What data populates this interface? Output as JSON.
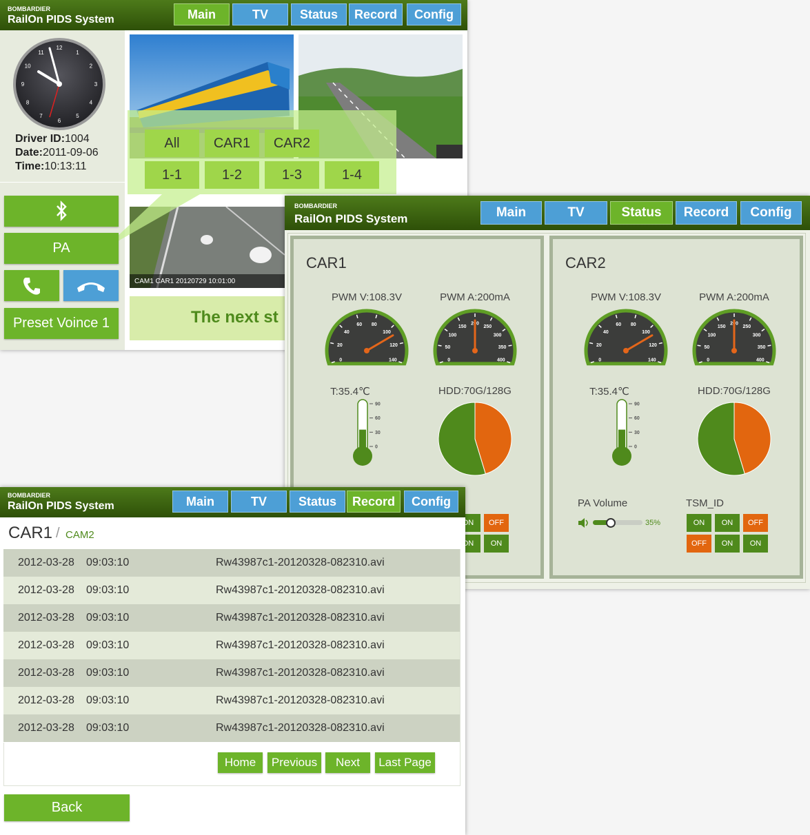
{
  "main_window": {
    "header": {
      "brand": "BOMBARDIER",
      "title": "RailOn PIDS System"
    },
    "nav": {
      "tabs": [
        "Main",
        "TV",
        "Status",
        "Record",
        "Config"
      ],
      "active": 0
    },
    "clock": {
      "numerals": [
        "12",
        "1",
        "2",
        "3",
        "4",
        "5",
        "6",
        "7",
        "8",
        "9",
        "10",
        "11"
      ]
    },
    "driver_info": [
      {
        "label": "Driver ID:",
        "value": "1004"
      },
      {
        "label": "Date:",
        "value": "2011-09-06"
      },
      {
        "label": "Time:",
        "value": "10:13:11"
      }
    ],
    "buttons": {
      "pa": "PA",
      "preset": "Preset Voince 1"
    },
    "camera_caption": "CAM1 CAR1 20120729 10:01:00",
    "selector": {
      "cars": [
        "All",
        "CAR1",
        "CAR2"
      ],
      "cams": [
        "1-1",
        "1-2",
        "1-3",
        "1-4"
      ]
    },
    "banner": "The next st"
  },
  "status_window": {
    "header": {
      "brand": "BOMBARDIER",
      "title": "RailOn PIDS System"
    },
    "nav": {
      "tabs": [
        "Main",
        "TV",
        "Status",
        "Record",
        "Config"
      ],
      "active": 2
    },
    "cars": [
      {
        "name": "CAR1",
        "pwm_v": {
          "label": "PWM V:108.3V",
          "value": 108.3,
          "ticks": [
            0,
            20,
            40,
            60,
            80,
            100,
            120,
            140
          ]
        },
        "pwm_a": {
          "label": "PWM A:200mA",
          "value": 200,
          "ticks": [
            0,
            50,
            100,
            150,
            200,
            250,
            300,
            350,
            400
          ]
        },
        "temperature": {
          "label": "T:35.4℃",
          "value": 35.4,
          "ticks": [
            0,
            30,
            60,
            90
          ]
        },
        "hdd": {
          "label": "HDD:70G/128G",
          "used": 70,
          "total": 128
        },
        "tsm_buttons": [
          [
            "ON",
            "OFF"
          ],
          [
            "ON",
            "ON"
          ]
        ]
      },
      {
        "name": "CAR2",
        "pwm_v": {
          "label": "PWM V:108.3V",
          "value": 108.3,
          "ticks": [
            0,
            20,
            40,
            60,
            80,
            100,
            120,
            140
          ]
        },
        "pwm_a": {
          "label": "PWM A:200mA",
          "value": 200,
          "ticks": [
            0,
            50,
            100,
            150,
            200,
            250,
            300,
            350,
            400
          ]
        },
        "temperature": {
          "label": "T:35.4℃",
          "value": 35.4,
          "ticks": [
            0,
            30,
            60,
            90
          ]
        },
        "hdd": {
          "label": "HDD:70G/128G",
          "used": 70,
          "total": 128
        },
        "pa_volume": {
          "label": "PA Volume",
          "value": 35,
          "value_label": "35%"
        },
        "tsm_label": "TSM_ID",
        "tsm_buttons": [
          [
            "ON",
            "ON",
            "OFF"
          ],
          [
            "OFF",
            "ON",
            "ON"
          ]
        ]
      }
    ]
  },
  "record_window": {
    "header": {
      "brand": "BOMBARDIER",
      "title": "RailOn PIDS System"
    },
    "nav": {
      "tabs": [
        "Main",
        "TV",
        "Status",
        "Record",
        "Config"
      ],
      "active": 3
    },
    "breadcrumb": {
      "car": "CAR1",
      "separator": "/",
      "camera": "CAM2"
    },
    "rows": [
      [
        "2012-03-28",
        "09:03:10",
        "Rw43987c1-20120328-082310.avi"
      ],
      [
        "2012-03-28",
        "09:03:10",
        "Rw43987c1-20120328-082310.avi"
      ],
      [
        "2012-03-28",
        "09:03:10",
        "Rw43987c1-20120328-082310.avi"
      ],
      [
        "2012-03-28",
        "09:03:10",
        "Rw43987c1-20120328-082310.avi"
      ],
      [
        "2012-03-28",
        "09:03:10",
        "Rw43987c1-20120328-082310.avi"
      ],
      [
        "2012-03-28",
        "09:03:10",
        "Rw43987c1-20120328-082310.avi"
      ],
      [
        "2012-03-28",
        "09:03:10",
        "Rw43987c1-20120328-082310.avi"
      ]
    ],
    "pager": [
      "Home",
      "Previous",
      "Next",
      "Last Page"
    ],
    "back": "Back"
  }
}
